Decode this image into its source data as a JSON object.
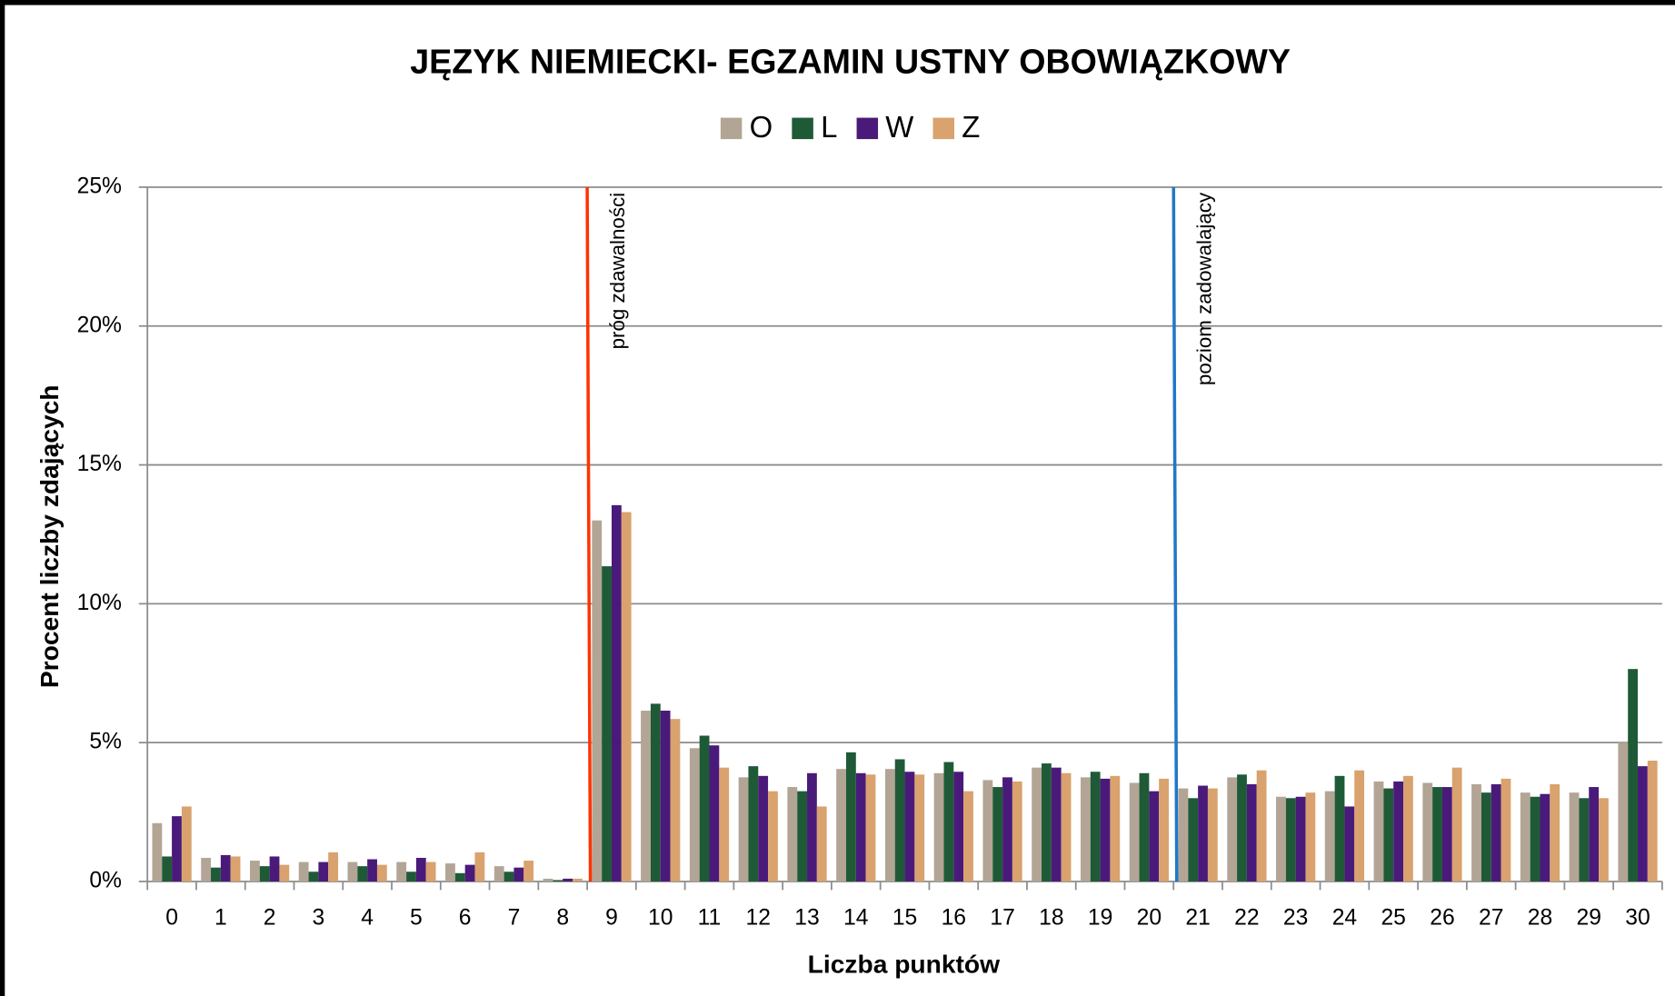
{
  "chart_data": {
    "type": "bar",
    "title": "JĘZYK NIEMIECKI- EGZAMIN USTNY OBOWIĄZKOWY",
    "x_label": "Liczba punktów",
    "y_label": "Procent liczby zdających",
    "categories": [
      "0",
      "1",
      "2",
      "3",
      "4",
      "5",
      "6",
      "7",
      "8",
      "9",
      "10",
      "11",
      "12",
      "13",
      "14",
      "15",
      "16",
      "17",
      "18",
      "19",
      "20",
      "21",
      "22",
      "23",
      "24",
      "25",
      "26",
      "27",
      "28",
      "29",
      "30"
    ],
    "series": [
      {
        "name": "O",
        "color": "#b3a595",
        "values": [
          2.1,
          0.85,
          0.75,
          0.7,
          0.7,
          0.7,
          0.65,
          0.55,
          0.1,
          13.0,
          6.15,
          4.8,
          3.75,
          3.4,
          4.05,
          4.05,
          3.9,
          3.65,
          4.1,
          3.75,
          3.55,
          3.35,
          3.75,
          3.05,
          3.25,
          3.6,
          3.55,
          3.5,
          3.2,
          3.2,
          5.0
        ]
      },
      {
        "name": "L",
        "color": "#1f5a37",
        "values": [
          0.9,
          0.5,
          0.55,
          0.35,
          0.55,
          0.35,
          0.3,
          0.35,
          0.05,
          11.35,
          6.4,
          5.25,
          4.15,
          3.25,
          4.65,
          4.4,
          4.3,
          3.4,
          4.25,
          3.95,
          3.9,
          3.0,
          3.85,
          3.0,
          3.8,
          3.35,
          3.4,
          3.2,
          3.05,
          3.0,
          7.65
        ]
      },
      {
        "name": "W",
        "color": "#4a1a7a",
        "values": [
          2.35,
          0.95,
          0.9,
          0.7,
          0.8,
          0.85,
          0.6,
          0.5,
          0.1,
          13.55,
          6.15,
          4.9,
          3.8,
          3.9,
          3.9,
          3.95,
          3.95,
          3.75,
          4.1,
          3.7,
          3.25,
          3.45,
          3.5,
          3.05,
          2.7,
          3.6,
          3.4,
          3.5,
          3.15,
          3.4,
          4.15
        ]
      },
      {
        "name": "Z",
        "color": "#d9a26e",
        "values": [
          2.7,
          0.9,
          0.6,
          1.05,
          0.6,
          0.7,
          1.05,
          0.75,
          0.1,
          13.3,
          5.85,
          4.1,
          3.25,
          2.7,
          3.85,
          3.85,
          3.25,
          3.6,
          3.9,
          3.8,
          3.7,
          3.35,
          4.0,
          3.2,
          4.0,
          3.8,
          4.1,
          3.7,
          3.5,
          3.0,
          4.35
        ]
      }
    ],
    "ylim": [
      0,
      25
    ],
    "yticks": [
      {
        "value": 0,
        "label": "0%"
      },
      {
        "value": 5,
        "label": "5%"
      },
      {
        "value": 10,
        "label": "10%"
      },
      {
        "value": 15,
        "label": "15%"
      },
      {
        "value": 20,
        "label": "20%"
      },
      {
        "value": 25,
        "label": "25%"
      }
    ],
    "grid": true,
    "annotations": [
      {
        "text": "próg zdawalności",
        "x": 8.5,
        "color": "#ff3300"
      },
      {
        "text": "poziom zadowalający",
        "x": 20.5,
        "color": "#1f78c8"
      }
    ]
  }
}
